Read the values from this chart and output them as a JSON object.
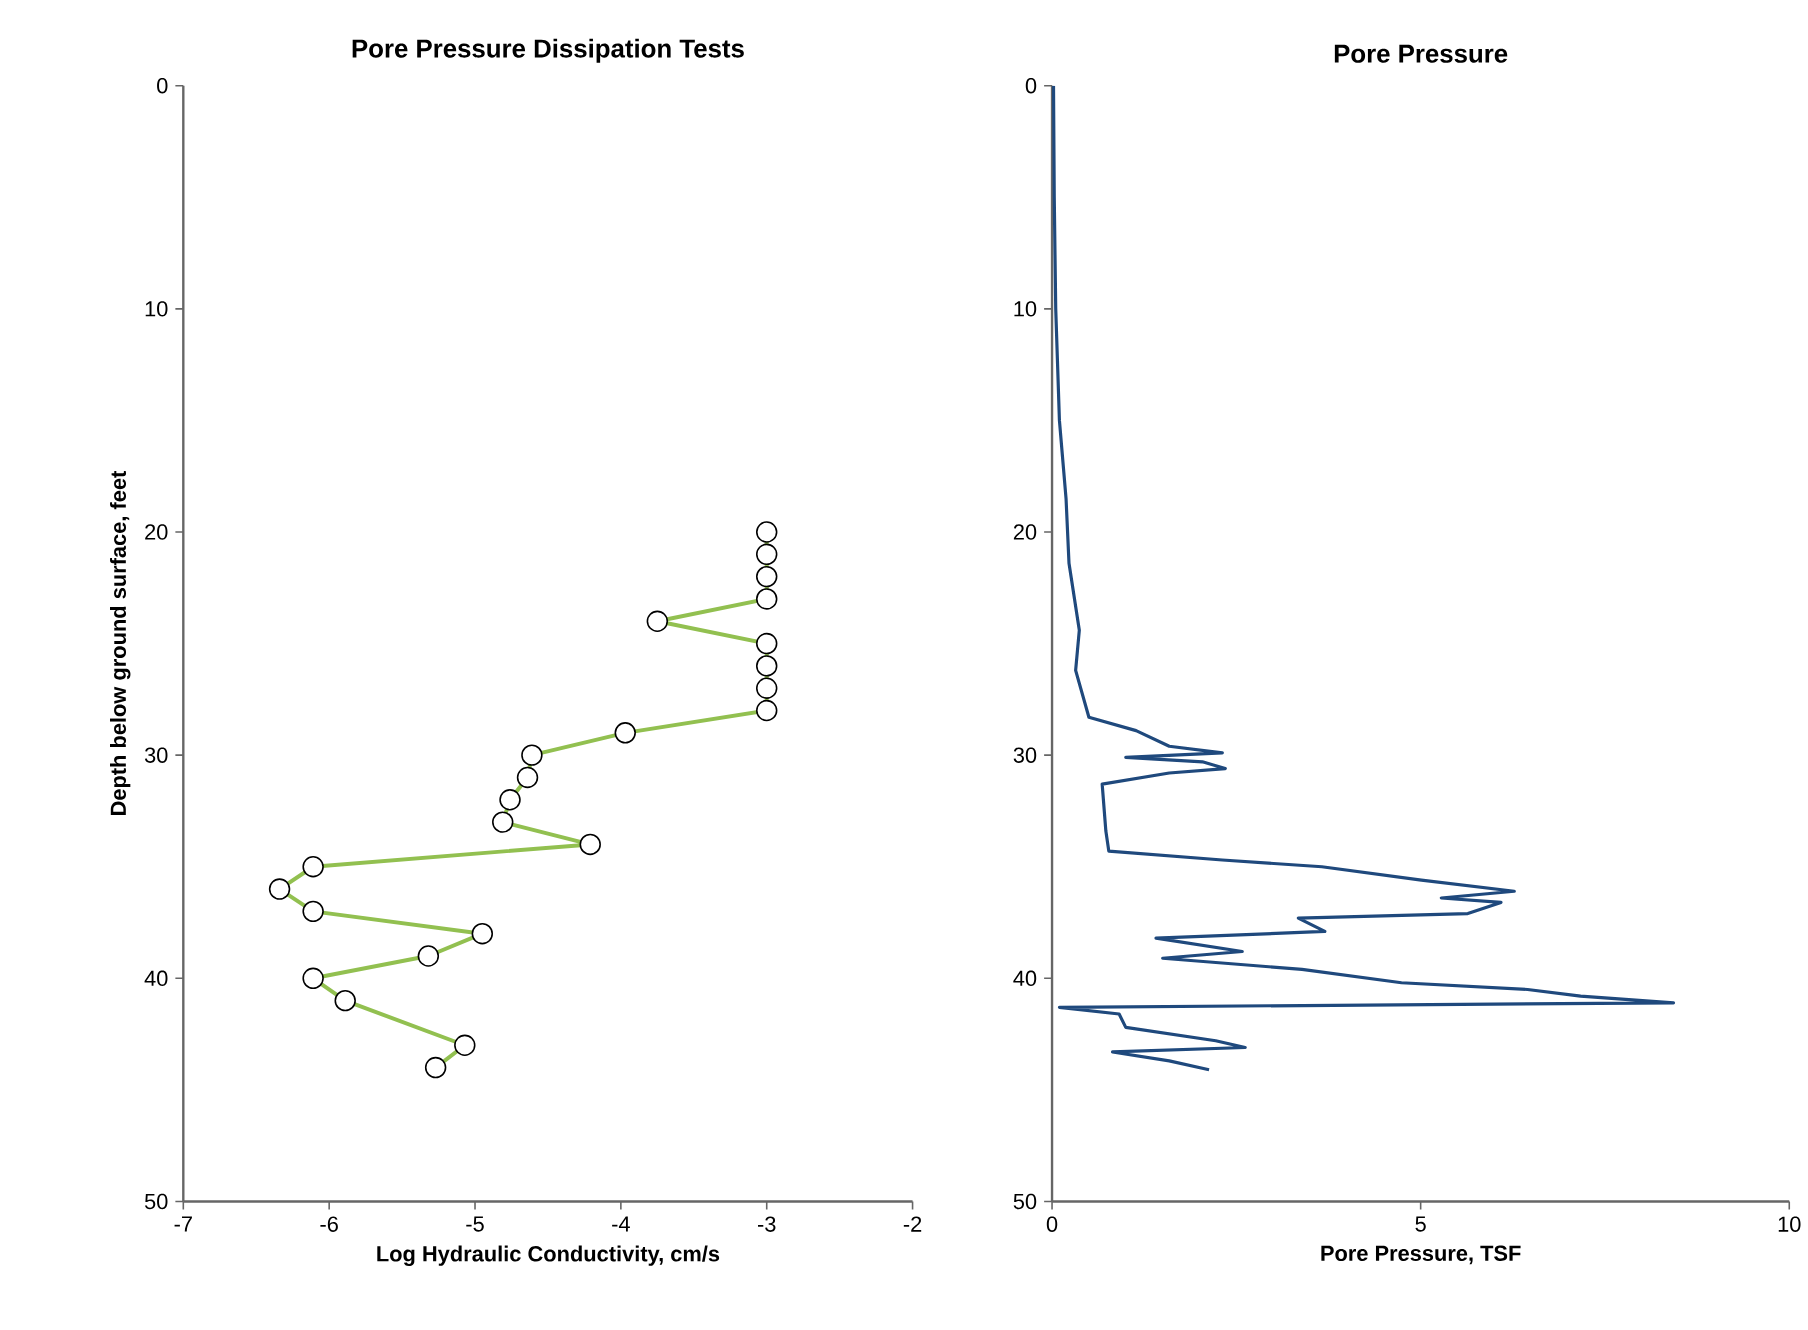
{
  "chart_data": [
    {
      "type": "line",
      "title": "Pore Pressure Dissipation Tests",
      "xlabel": "Log Hydraulic  Conductivity,  cm/s",
      "ylabel": "Depth below ground  surface,  feet",
      "xlim": [
        -7,
        -2
      ],
      "ylim": [
        50,
        0
      ],
      "xticks": [
        -7,
        -6,
        -5,
        -4,
        -3,
        -2
      ],
      "yticks": [
        0,
        10,
        20,
        30,
        40,
        50
      ],
      "marker": "circle",
      "series": [
        {
          "color": "#92c050",
          "x": [
            -3,
            -3,
            -3,
            -3,
            -3.75,
            -3,
            -3,
            -3,
            -3,
            -3.97,
            -4.61,
            -4.64,
            -4.76,
            -4.81,
            -4.21,
            -6.11,
            -6.34,
            -6.11,
            -4.95,
            -5.32,
            -6.11,
            -5.89,
            -5.07,
            -5.27
          ],
          "values": [
            20,
            21,
            22,
            23,
            24,
            25,
            26,
            27,
            28,
            29,
            30,
            31,
            32,
            33,
            34,
            35,
            36,
            37,
            38,
            39,
            40,
            41,
            43,
            44
          ]
        }
      ]
    },
    {
      "type": "line",
      "title": "Pore Pressure",
      "xlabel": "Pore Pressure,  TSF",
      "xlim": [
        0,
        10
      ],
      "ylim": [
        50,
        0
      ],
      "xticks": [
        0,
        5,
        10
      ],
      "yticks": [
        0,
        10,
        20,
        30,
        40,
        50
      ],
      "marker": "none",
      "series": [
        {
          "color": "#1f497d",
          "x": [
            0.02,
            0.03,
            0.05,
            0.1,
            0.19,
            0.23,
            0.37,
            0.32,
            0.5,
            1.14,
            1.59,
            2.31,
            1.0,
            2.04,
            2.35,
            1.59,
            0.68,
            0.73,
            0.77,
            2.31,
            3.66,
            5.01,
            6.27,
            5.28,
            6.09,
            5.64,
            3.34,
            3.7,
            1.41,
            2.58,
            1.5,
            3.39,
            4.74,
            6.45,
            7.17,
            8.43,
            0.1,
            0.91,
            1.0,
            2.22,
            2.62,
            0.82,
            1.59,
            2.13
          ],
          "values": [
            0,
            5,
            10,
            15,
            18.5,
            21.4,
            24.4,
            26.2,
            28.3,
            28.9,
            29.6,
            29.9,
            30.1,
            30.3,
            30.6,
            30.8,
            31.3,
            33.4,
            34.3,
            34.7,
            35.0,
            35.6,
            36.1,
            36.4,
            36.6,
            37.1,
            37.3,
            37.9,
            38.2,
            38.8,
            39.1,
            39.6,
            40.2,
            40.5,
            40.8,
            41.1,
            41.3,
            41.6,
            42.2,
            42.8,
            43.1,
            43.3,
            43.7,
            44.1
          ]
        }
      ]
    }
  ]
}
